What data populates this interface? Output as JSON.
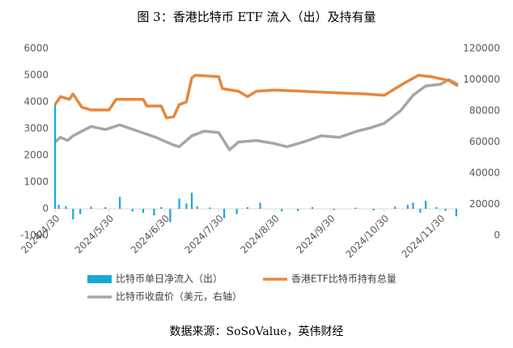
{
  "chart_data": {
    "type": "combo",
    "title": "图 3：香港比特币 ETF 流入（出）及持有量",
    "source": "数据来源：SoSoValue，英伟财经",
    "xlim": [
      "2024/4/30",
      "2024/12/10"
    ],
    "xticks": [
      "2024/4/30",
      "2024/5/30",
      "2024/6/30",
      "2024/7/30",
      "2024/8/30",
      "2024/9/30",
      "2024/10/30",
      "2024/11/30"
    ],
    "ylim": [
      -1000,
      6000
    ],
    "yticks": [
      -1000,
      0,
      1000,
      2000,
      3000,
      4000,
      5000,
      6000
    ],
    "y2lim": [
      0,
      120000
    ],
    "y2ticks": [
      0,
      20000,
      40000,
      60000,
      80000,
      100000,
      120000
    ],
    "series": [
      {
        "name": "比特币单日净流入（出）",
        "type": "bar",
        "color": "#1aa7d8",
        "x": [
          "2024/4/30",
          "2024/5/2",
          "2024/5/6",
          "2024/5/10",
          "2024/5/14",
          "2024/5/20",
          "2024/5/28",
          "2024/6/5",
          "2024/6/12",
          "2024/6/18",
          "2024/6/24",
          "2024/6/28",
          "2024/7/3",
          "2024/7/8",
          "2024/7/12",
          "2024/7/15",
          "2024/7/18",
          "2024/7/25",
          "2024/8/2",
          "2024/8/9",
          "2024/8/15",
          "2024/8/22",
          "2024/9/3",
          "2024/9/12",
          "2024/9/20",
          "2024/10/2",
          "2024/10/14",
          "2024/10/24",
          "2024/11/5",
          "2024/11/12",
          "2024/11/15",
          "2024/11/19",
          "2024/11/22",
          "2024/11/28",
          "2024/12/3",
          "2024/12/9"
        ],
        "values": [
          3900,
          150,
          100,
          -400,
          -200,
          80,
          60,
          450,
          -100,
          -150,
          -250,
          60,
          -500,
          380,
          200,
          600,
          100,
          50,
          -350,
          -200,
          60,
          230,
          -100,
          -80,
          60,
          -50,
          40,
          -60,
          80,
          150,
          230,
          -150,
          300,
          60,
          -80,
          -280
        ]
      },
      {
        "name": "香港ETF比特币持有总量",
        "type": "line",
        "color": "#e8873a",
        "x": [
          "2024/4/30",
          "2024/5/3",
          "2024/5/8",
          "2024/5/10",
          "2024/5/15",
          "2024/5/20",
          "2024/5/30",
          "2024/6/3",
          "2024/6/18",
          "2024/6/20",
          "2024/6/28",
          "2024/7/1",
          "2024/7/5",
          "2024/7/8",
          "2024/7/12",
          "2024/7/15",
          "2024/7/17",
          "2024/7/30",
          "2024/8/1",
          "2024/8/10",
          "2024/8/15",
          "2024/8/20",
          "2024/8/30",
          "2024/9/15",
          "2024/10/1",
          "2024/10/20",
          "2024/10/30",
          "2024/11/10",
          "2024/11/18",
          "2024/11/25",
          "2024/12/5",
          "2024/12/10"
        ],
        "values": [
          3900,
          4200,
          4100,
          4300,
          3800,
          3700,
          3700,
          4100,
          4100,
          3850,
          3850,
          3400,
          3450,
          3900,
          4000,
          4900,
          5000,
          4950,
          4500,
          4400,
          4200,
          4400,
          4450,
          4400,
          4350,
          4300,
          4250,
          4700,
          5000,
          4950,
          4800,
          4600
        ]
      },
      {
        "name": "比特币收盘价（美元，右轴）",
        "type": "line",
        "axis": "y2",
        "color": "#a6a6a6",
        "x": [
          "2024/4/30",
          "2024/5/3",
          "2024/5/7",
          "2024/5/10",
          "2024/5/20",
          "2024/5/28",
          "2024/6/5",
          "2024/6/15",
          "2024/6/25",
          "2024/7/5",
          "2024/7/8",
          "2024/7/15",
          "2024/7/22",
          "2024/7/30",
          "2024/8/5",
          "2024/8/10",
          "2024/8/20",
          "2024/8/30",
          "2024/9/6",
          "2024/9/15",
          "2024/9/25",
          "2024/10/5",
          "2024/10/15",
          "2024/10/22",
          "2024/10/30",
          "2024/11/8",
          "2024/11/15",
          "2024/11/22",
          "2024/11/30",
          "2024/12/5",
          "2024/12/10"
        ],
        "values": [
          60000,
          63000,
          61000,
          64000,
          70000,
          68000,
          71000,
          67000,
          63000,
          58000,
          57000,
          64000,
          67000,
          66000,
          55000,
          60000,
          61000,
          59000,
          57000,
          60000,
          64000,
          63000,
          67000,
          69000,
          72000,
          80000,
          90000,
          96000,
          97000,
          100000,
          97000
        ]
      }
    ]
  }
}
